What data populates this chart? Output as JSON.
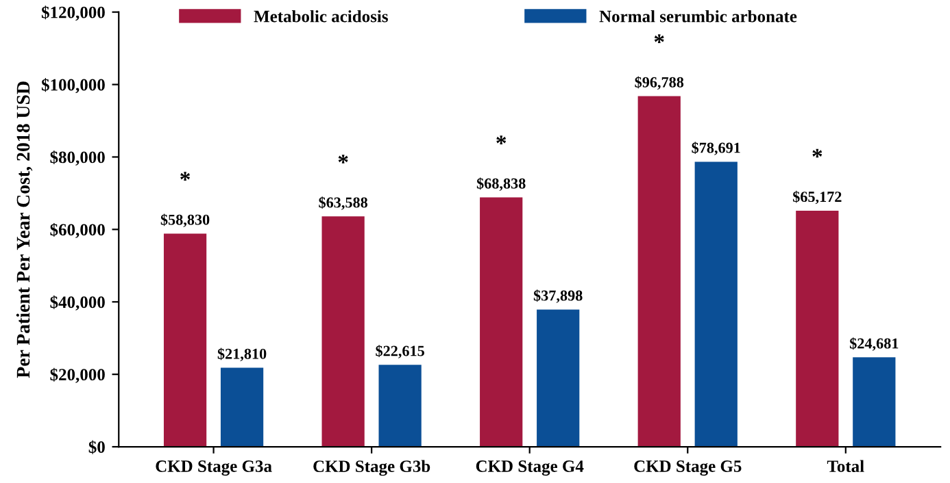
{
  "chart_data": {
    "type": "bar",
    "ylabel": "Per Patient Per Year Cost, 2018 USD",
    "categories": [
      "CKD Stage G3a",
      "CKD Stage G3b",
      "CKD Stage G4",
      "CKD Stage G5",
      "Total"
    ],
    "series": [
      {
        "name": "Metabolic acidosis",
        "color": "#a3193f",
        "values": [
          58830,
          63588,
          68838,
          96788,
          65172
        ],
        "value_labels": [
          "$58,830",
          "$63,588",
          "$68,838",
          "$96,788",
          "$65,172"
        ]
      },
      {
        "name": "Normal serumbic arbonate",
        "color": "#0b4f96",
        "values": [
          21810,
          22615,
          37898,
          78691,
          24681
        ],
        "value_labels": [
          "$21,810",
          "$22,615",
          "$37,898",
          "$78,691",
          "$24,681"
        ]
      }
    ],
    "ylim": [
      0,
      120000
    ],
    "yticks": [
      {
        "value": 0,
        "label": "$0"
      },
      {
        "value": 20000,
        "label": "$20,000"
      },
      {
        "value": 40000,
        "label": "$40,000"
      },
      {
        "value": 60000,
        "label": "$60,000"
      },
      {
        "value": 80000,
        "label": "$80,000"
      },
      {
        "value": 100000,
        "label": "$100,000"
      },
      {
        "value": 120000,
        "label": "$120,000"
      }
    ],
    "annotations": [
      "*",
      "*",
      "*",
      "*",
      "*"
    ],
    "grid": false,
    "legend": "top"
  }
}
